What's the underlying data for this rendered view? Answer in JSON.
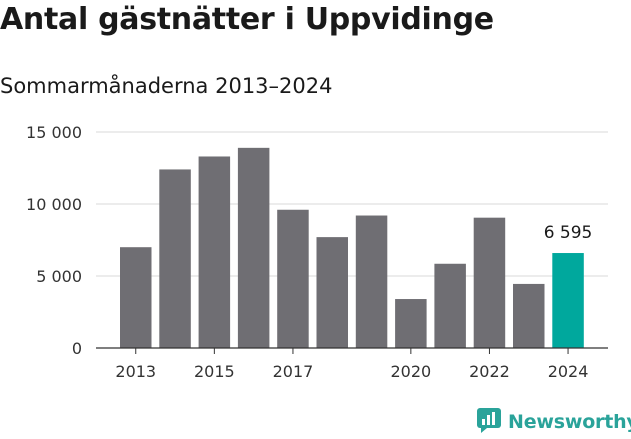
{
  "header": {
    "title": "Antal gästnätter i Uppvidinge",
    "subtitle": "Sommarmånaderna 2013–2024"
  },
  "brand": {
    "name": "Newsworthy",
    "icon": "newsworthy-logo-icon",
    "color": "#2aa39a"
  },
  "colors": {
    "bar": "#6f6e73",
    "highlight": "#00a89d",
    "grid": "#d9d9d9",
    "axis": "#333333"
  },
  "chart_data": {
    "type": "bar",
    "title": "Antal gästnätter i Uppvidinge",
    "subtitle": "Sommarmånaderna 2013–2024",
    "categories": [
      "2013",
      "2014",
      "2015",
      "2016",
      "2017",
      "2018",
      "2019",
      "2020",
      "2021",
      "2022",
      "2023",
      "2024"
    ],
    "values": [
      7000,
      12400,
      13300,
      13900,
      9600,
      7700,
      9200,
      3400,
      5850,
      9050,
      4450,
      6595
    ],
    "x_tick_labels": [
      "2013",
      "2015",
      "2017",
      "2020",
      "2022",
      "2024"
    ],
    "y_ticks": [
      0,
      5000,
      10000,
      15000
    ],
    "y_tick_labels": [
      "0",
      "5 000",
      "10 000",
      "15 000"
    ],
    "ylim": [
      0,
      15000
    ],
    "grid": true,
    "highlight_index": 11,
    "data_labels": [
      {
        "index": 11,
        "text": "6 595"
      }
    ],
    "xlabel": "",
    "ylabel": ""
  }
}
